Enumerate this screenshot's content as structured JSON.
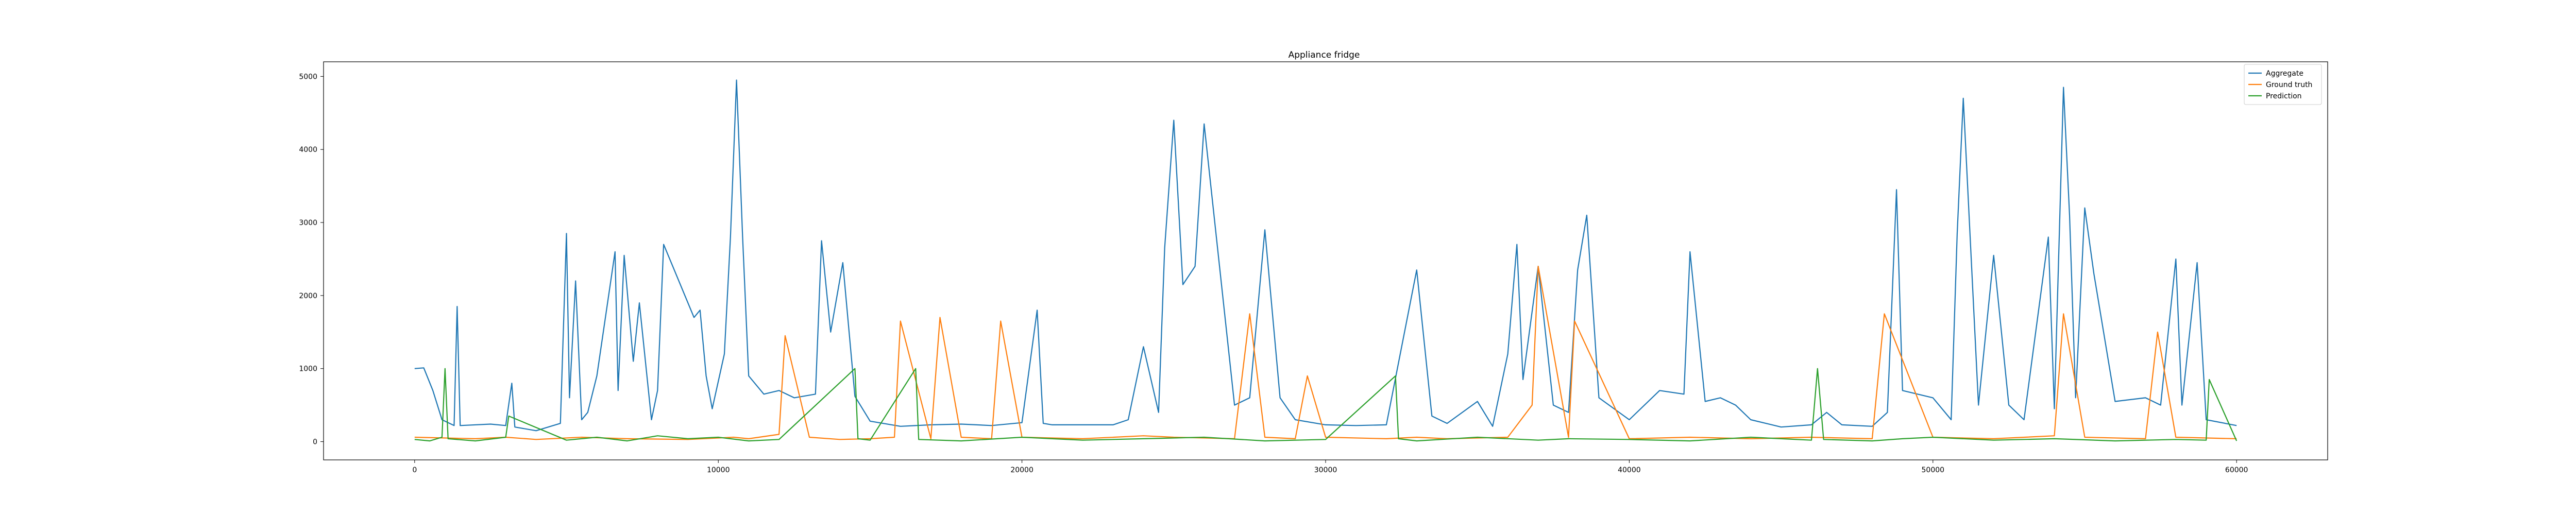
{
  "chart_data": {
    "type": "line",
    "title": "Appliance fridge",
    "xlabel": "",
    "ylabel": "",
    "xlim": [
      -3000,
      63000
    ],
    "ylim": [
      -250,
      5200
    ],
    "xticks": [
      0,
      10000,
      20000,
      30000,
      40000,
      50000,
      60000
    ],
    "xtick_labels": [
      "0",
      "10000",
      "20000",
      "30000",
      "40000",
      "50000",
      "60000"
    ],
    "yticks": [
      0,
      1000,
      2000,
      3000,
      4000,
      5000
    ],
    "ytick_labels": [
      "0",
      "1000",
      "2000",
      "3000",
      "4000",
      "5000"
    ],
    "grid": false,
    "legend_position": "upper-right",
    "series": [
      {
        "name": "Aggregate",
        "color": "#1f77b4",
        "x": [
          0,
          300,
          600,
          900,
          1300,
          1400,
          1500,
          2500,
          3000,
          3200,
          3300,
          4000,
          4800,
          5000,
          5100,
          5300,
          5500,
          5700,
          6000,
          6600,
          6700,
          6900,
          7200,
          7400,
          7800,
          8000,
          8200,
          8500,
          8900,
          9200,
          9400,
          9600,
          9800,
          10200,
          10400,
          10600,
          10800,
          11000,
          11500,
          12000,
          12500,
          13200,
          13400,
          13700,
          14100,
          14500,
          15000,
          16000,
          17000,
          18000,
          19000,
          20000,
          20500,
          20700,
          21000,
          22000,
          23000,
          23500,
          24000,
          24500,
          24700,
          25000,
          25300,
          25700,
          26000,
          27000,
          27500,
          28000,
          28500,
          29000,
          30000,
          31000,
          32000,
          33000,
          33500,
          34000,
          35000,
          35500,
          36000,
          36300,
          36500,
          37000,
          37500,
          38000,
          38300,
          38600,
          39000,
          40000,
          41000,
          41800,
          42000,
          42500,
          43000,
          43500,
          44000,
          45000,
          46000,
          46500,
          47000,
          48000,
          48500,
          48800,
          49000,
          50000,
          50600,
          50800,
          51000,
          51500,
          52000,
          52500,
          53000,
          53800,
          54000,
          54300,
          54500,
          54700,
          55000,
          55300,
          56000,
          57000,
          57500,
          58000,
          58200,
          58700,
          59000,
          60000
        ],
        "y": [
          1000,
          1010,
          700,
          300,
          220,
          1850,
          220,
          240,
          220,
          800,
          200,
          150,
          250,
          2850,
          600,
          2200,
          300,
          400,
          900,
          2600,
          700,
          2550,
          1100,
          1900,
          300,
          700,
          2700,
          2400,
          2000,
          1700,
          1800,
          900,
          450,
          1200,
          2800,
          4950,
          2800,
          900,
          650,
          700,
          600,
          650,
          2750,
          1500,
          2450,
          620,
          280,
          210,
          230,
          240,
          220,
          260,
          1800,
          250,
          230,
          230,
          230,
          300,
          1300,
          400,
          2650,
          4400,
          2150,
          2400,
          4350,
          500,
          600,
          2900,
          600,
          300,
          230,
          220,
          230,
          2350,
          350,
          250,
          550,
          210,
          1200,
          2700,
          850,
          2400,
          500,
          400,
          2350,
          3100,
          600,
          300,
          700,
          650,
          2600,
          550,
          600,
          500,
          300,
          200,
          230,
          400,
          230,
          210,
          400,
          3450,
          700,
          600,
          300,
          2850,
          4700,
          500,
          2550,
          500,
          300,
          2800,
          450,
          4850,
          3100,
          600,
          3200,
          2300,
          550,
          600,
          500,
          2500,
          500,
          2450,
          300,
          220
        ]
      },
      {
        "name": "Ground truth",
        "color": "#ff7f0e",
        "x": [
          0,
          2000,
          3000,
          4000,
          5500,
          7000,
          9000,
          10500,
          11000,
          12000,
          12200,
          13000,
          14000,
          15000,
          15800,
          16000,
          17000,
          17300,
          18000,
          19000,
          19300,
          20000,
          22000,
          24000,
          25000,
          27000,
          27500,
          28000,
          29000,
          29400,
          30000,
          32000,
          33000,
          34000,
          36000,
          36800,
          37000,
          38000,
          38200,
          40000,
          42000,
          44000,
          46000,
          48000,
          48400,
          50000,
          52000,
          54000,
          54300,
          55000,
          57000,
          57400,
          58000,
          60000
        ],
        "y": [
          60,
          40,
          60,
          30,
          60,
          40,
          30,
          60,
          40,
          100,
          1450,
          60,
          30,
          40,
          60,
          1650,
          40,
          1700,
          60,
          40,
          1650,
          60,
          40,
          80,
          60,
          40,
          1750,
          60,
          40,
          900,
          60,
          40,
          60,
          40,
          60,
          500,
          2400,
          60,
          1650,
          40,
          60,
          40,
          60,
          40,
          1750,
          60,
          40,
          80,
          1750,
          60,
          40,
          1500,
          60,
          40
        ]
      },
      {
        "name": "Prediction",
        "color": "#2ca02c",
        "x": [
          0,
          500,
          900,
          1000,
          1100,
          2000,
          3000,
          3100,
          5000,
          6000,
          7000,
          8000,
          9000,
          10000,
          11000,
          12000,
          14500,
          14600,
          15000,
          16500,
          16600,
          18000,
          20000,
          22000,
          24000,
          26000,
          28000,
          30000,
          32300,
          32400,
          33000,
          35000,
          37000,
          38000,
          40000,
          42000,
          44000,
          46000,
          46200,
          46400,
          48000,
          49000,
          50000,
          52000,
          54000,
          56000,
          58000,
          59000,
          59100,
          60000
        ],
        "y": [
          30,
          10,
          60,
          1000,
          40,
          10,
          60,
          350,
          20,
          60,
          10,
          80,
          40,
          60,
          10,
          30,
          1000,
          40,
          20,
          1000,
          30,
          10,
          60,
          20,
          40,
          60,
          10,
          30,
          900,
          40,
          10,
          60,
          20,
          40,
          30,
          10,
          60,
          20,
          1000,
          30,
          10,
          40,
          60,
          20,
          40,
          10,
          30,
          20,
          850,
          10
        ]
      }
    ]
  }
}
